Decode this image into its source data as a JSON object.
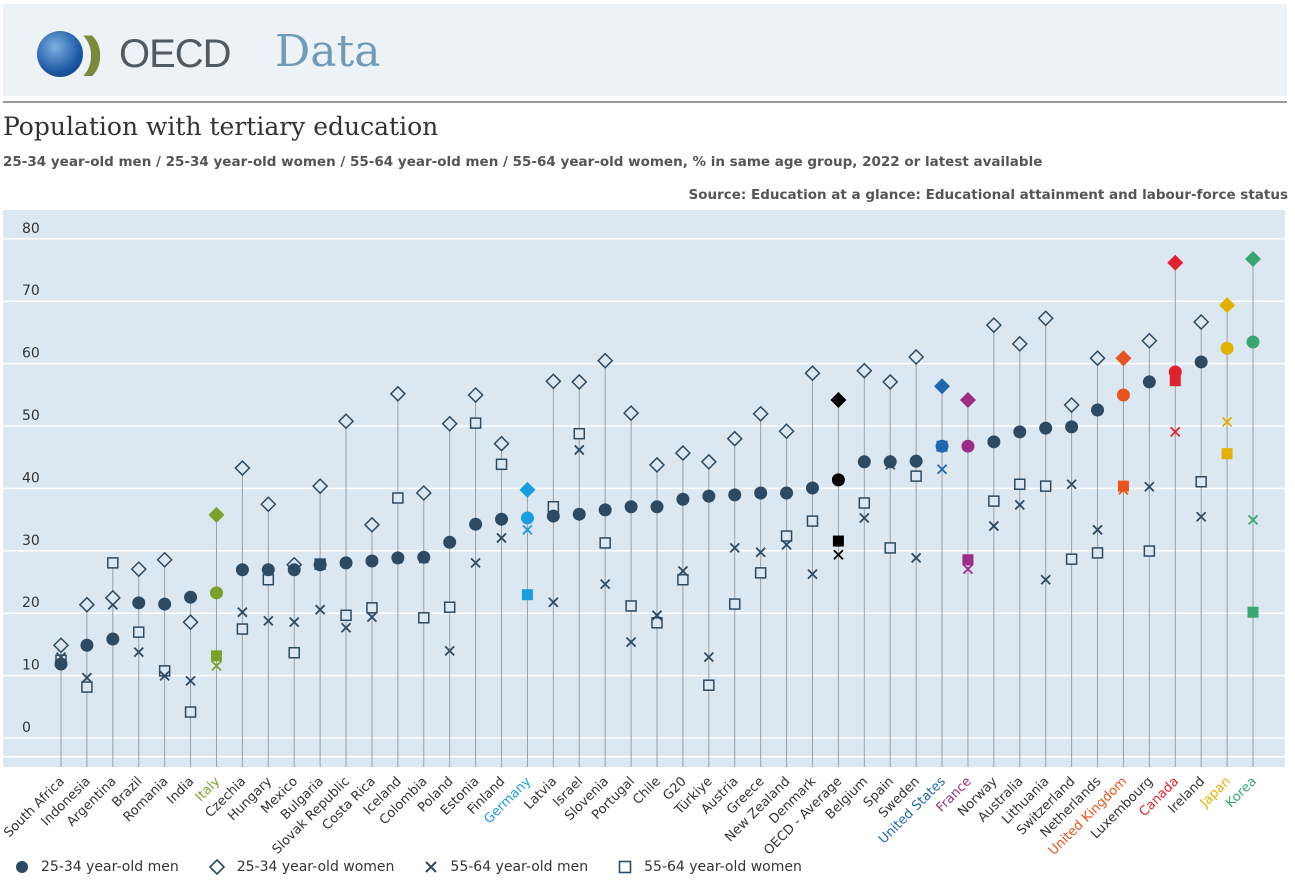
{
  "header": {
    "logo_text": "OECD",
    "section": "Data"
  },
  "title": "Population with tertiary education",
  "subtitle": "25-34 year-old men / 25-34 year-old women / 55-64 year-old men / 55-64 year-old women, % in same age group, 2022 or latest available",
  "source": "Source: Education at a glance: Educational attainment and labour-force status",
  "colors": {
    "default": "#2d4a63",
    "Italy": "#7aa22a",
    "Germany": "#1a9ce0",
    "OECD - Average": "#000000",
    "United States": "#1f67b1",
    "France": "#9b2d86",
    "United Kingdom": "#e8531e",
    "Canada": "#e0222e",
    "Japan": "#e2b100",
    "Korea": "#3aa672"
  },
  "chart_data": {
    "type": "scatter",
    "title": "Population with tertiary education",
    "ylabel": "%",
    "ylim": [
      -3,
      85
    ],
    "yticks": [
      0,
      10,
      20,
      30,
      40,
      50,
      60,
      70,
      80
    ],
    "grid": true,
    "legend_position": "bottom-left",
    "categories": [
      "South Africa",
      "Indonesia",
      "Argentina",
      "Brazil",
      "Romania",
      "India",
      "Italy",
      "Czechia",
      "Hungary",
      "Mexico",
      "Bulgaria",
      "Slovak Republic",
      "Costa Rica",
      "Iceland",
      "Colombia",
      "Poland",
      "Estonia",
      "Finland",
      "Germany",
      "Latvia",
      "Israel",
      "Slovenia",
      "Portugal",
      "Chile",
      "G20",
      "Türkiye",
      "Austria",
      "Greece",
      "New Zealand",
      "Denmark",
      "OECD - Average",
      "Belgium",
      "Spain",
      "Sweden",
      "United States",
      "France",
      "Norway",
      "Australia",
      "Lithuania",
      "Switzerland",
      "Netherlands",
      "United Kingdom",
      "Luxembourg",
      "Canada",
      "Ireland",
      "Japan",
      "Korea"
    ],
    "series": [
      {
        "name": "25-34 year-old men",
        "marker": "circle",
        "values": [
          10.1,
          13.1,
          14.1,
          19.9,
          19.7,
          20.8,
          21.5,
          25.2,
          25.2,
          25.2,
          26.0,
          26.3,
          26.6,
          27.1,
          27.2,
          29.6,
          32.5,
          33.3,
          33.5,
          33.8,
          34.1,
          34.8,
          35.3,
          35.3,
          36.5,
          37.0,
          37.2,
          37.5,
          37.5,
          38.3,
          39.6,
          42.5,
          42.5,
          42.6,
          45.0,
          45.0,
          45.7,
          47.3,
          47.9,
          48.1,
          50.8,
          53.2,
          55.3,
          56.9,
          58.5,
          60.7,
          61.7
        ]
      },
      {
        "name": "25-34 year-old women",
        "marker": "diamond",
        "values": [
          13.1,
          19.6,
          20.7,
          25.3,
          26.8,
          16.8,
          34.0,
          41.5,
          35.7,
          26.0,
          38.6,
          49.0,
          32.4,
          53.4,
          37.5,
          48.6,
          53.2,
          45.4,
          38.0,
          55.4,
          55.3,
          58.7,
          50.3,
          42.0,
          43.9,
          42.5,
          46.2,
          50.2,
          47.4,
          56.7,
          52.4,
          57.1,
          55.3,
          59.3,
          54.6,
          52.4,
          64.4,
          61.4,
          65.5,
          51.6,
          59.1,
          59.1,
          61.9,
          74.4,
          64.9,
          67.6,
          75.0
        ]
      },
      {
        "name": "55-64 year-old men",
        "marker": "x",
        "values": [
          11.2,
          7.9,
          19.6,
          12.0,
          8.2,
          7.4,
          9.8,
          18.4,
          17.0,
          16.8,
          18.8,
          15.9,
          17.6,
          27.0,
          27.0,
          12.2,
          26.3,
          30.3,
          31.6,
          20.0,
          44.4,
          22.9,
          13.6,
          17.9,
          25.0,
          11.2,
          28.7,
          28.0,
          29.2,
          24.5,
          27.6,
          33.5,
          42.0,
          27.1,
          41.3,
          25.3,
          32.2,
          35.6,
          23.6,
          38.9,
          31.6,
          38.0,
          38.5,
          47.3,
          33.7,
          48.9,
          33.2
        ]
      },
      {
        "name": "55-64 year-old women",
        "marker": "square",
        "values": [
          10.7,
          6.4,
          26.3,
          15.2,
          9.0,
          2.4,
          11.4,
          15.7,
          23.6,
          11.9,
          26.1,
          17.9,
          19.1,
          36.7,
          17.5,
          19.2,
          48.7,
          42.1,
          21.2,
          35.3,
          47.0,
          29.5,
          19.4,
          16.7,
          23.6,
          6.7,
          19.7,
          24.7,
          30.6,
          33.0,
          29.8,
          35.9,
          28.7,
          40.2,
          45.0,
          26.8,
          36.2,
          38.9,
          38.6,
          26.9,
          27.9,
          38.6,
          28.2,
          55.5,
          39.3,
          43.8,
          18.4
        ]
      }
    ]
  }
}
